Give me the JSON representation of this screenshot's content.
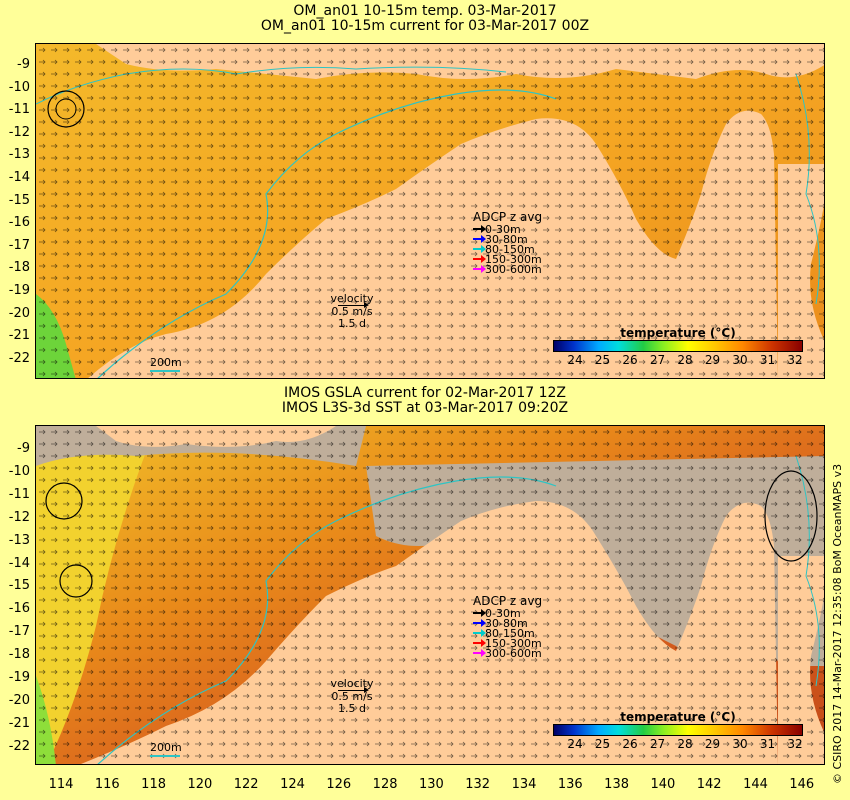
{
  "top_panel": {
    "title_line1": "OM_an01 10-15m temp. 03-Mar-2017",
    "title_line2": "OM_an01 10-15m current for 03-Mar-2017 00Z"
  },
  "bottom_panel": {
    "title_line1": "IMOS GSLA current for 02-Mar-2017 12Z",
    "title_line2": "IMOS L3S-3d SST at 03-Mar-2017 09:20Z"
  },
  "lat_labels": [
    "-9",
    "-10",
    "-11",
    "-12",
    "-13",
    "-14",
    "-15",
    "-16",
    "-17",
    "-18",
    "-19",
    "-20",
    "-21",
    "-22"
  ],
  "lon_labels": [
    "114",
    "116",
    "118",
    "120",
    "122",
    "124",
    "126",
    "128",
    "130",
    "132",
    "134",
    "136",
    "138",
    "140",
    "142",
    "144",
    "146"
  ],
  "legend": {
    "title": "ADCP z avg",
    "items": [
      {
        "label": "0-30m",
        "color": "#000000"
      },
      {
        "label": "30-80m",
        "color": "#0000ff"
      },
      {
        "label": "80-150m",
        "color": "#00cccc"
      },
      {
        "label": "150-300m",
        "color": "#ff0000"
      },
      {
        "label": "300-600m",
        "color": "#ff00ff"
      }
    ]
  },
  "velocity": {
    "label": "velocity",
    "speed": "0.5 m/s",
    "duration": "1.5 d"
  },
  "scale_label": "200m",
  "colorbar": {
    "title": "temperature (°C)",
    "ticks": [
      "24",
      "25",
      "26",
      "27",
      "28",
      "29",
      "30",
      "31",
      "32"
    ]
  },
  "credit": "© CSIRO 2017  14-Mar-2017 12:35:08 BoM OceanMAPS v3",
  "colors": {
    "land": "#ffcc99",
    "sea_warm": "#f5a623",
    "sea_hot": "#d9621e",
    "sea_cool": "#f2d22e",
    "cloud": "#bfae9a",
    "isobath": "#2ec4c4"
  }
}
